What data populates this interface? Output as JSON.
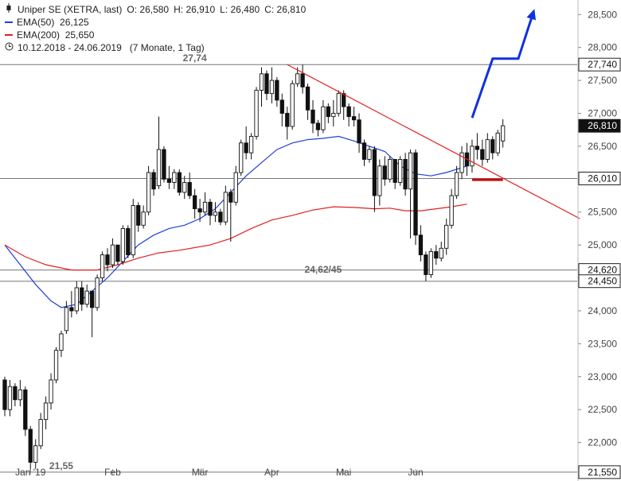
{
  "legend": {
    "instrument": "Uniper SE (XETRA, last)",
    "o_label": "O:",
    "o_value": "26,580",
    "h_label": "H:",
    "h_value": "26,910",
    "l_label": "L:",
    "l_value": "26,480",
    "c_label": "C:",
    "c_value": "26,810",
    "ema50_label": "EMA(50)",
    "ema50_value": "26,125",
    "ema50_color": "#1f3fd8",
    "ema200_label": "EMA(200)",
    "ema200_value": "25,650",
    "ema200_color": "#e02020",
    "period": "10.12.2018 - 24.06.2019",
    "period_note": "(7 Monate, 1 Tag)"
  },
  "chart_data": {
    "type": "candlestick",
    "ylim": [
      21.5,
      28.6
    ],
    "y_ticks": [
      "22,000",
      "22,500",
      "23,000",
      "23,500",
      "24,000",
      "24,500",
      "25,000",
      "25,500",
      "26,000",
      "26,500",
      "27,000",
      "27,500",
      "28,000",
      "28,500"
    ],
    "x_labels": [
      {
        "label": "Jan '19",
        "index": 5
      },
      {
        "label": "Feb",
        "index": 21
      },
      {
        "label": "Mär",
        "index": 38
      },
      {
        "label": "Apr",
        "index": 52
      },
      {
        "label": "Mai",
        "index": 66
      },
      {
        "label": "Jun",
        "index": 80
      }
    ],
    "price_boxes": [
      {
        "value": 27.74,
        "label": "27,740",
        "style": "outline"
      },
      {
        "value": 26.81,
        "label": "26,810",
        "style": "filled"
      },
      {
        "value": 26.01,
        "label": "26,010",
        "style": "outline"
      },
      {
        "value": 24.62,
        "label": "24,620",
        "style": "outline"
      },
      {
        "value": 24.45,
        "label": "24,450",
        "style": "outline"
      },
      {
        "value": 21.55,
        "label": "21,550",
        "style": "outline"
      }
    ],
    "horizontal_lines": [
      27.74,
      26.01,
      24.62,
      24.45
    ],
    "annotations": [
      {
        "text": "27,74",
        "index": 37,
        "y": 27.74
      },
      {
        "text": "24,62/45",
        "index": 62,
        "y": 24.53
      },
      {
        "text": "21,55",
        "index": 11,
        "y": 21.55
      }
    ],
    "trendline": {
      "from": {
        "index": 55,
        "y": 27.74
      },
      "to": {
        "index": 112,
        "y": 25.4
      },
      "color": "#e02020"
    },
    "forecast_arrow": {
      "color": "#1030e0",
      "points": [
        {
          "index": 91,
          "y": 26.93
        },
        {
          "index": 95,
          "y": 27.83
        },
        {
          "index": 100,
          "y": 27.83
        },
        {
          "index": 103,
          "y": 28.55
        }
      ]
    },
    "support_marker": {
      "from_index": 91,
      "to_index": 97,
      "y": 25.99,
      "color": "#d00000"
    },
    "series": [
      {
        "name": "EMA(50)",
        "color": "#1f3fd8",
        "points": [
          [
            0,
            25.0
          ],
          [
            3,
            24.7
          ],
          [
            6,
            24.4
          ],
          [
            9,
            24.15
          ],
          [
            11,
            24.05
          ],
          [
            14,
            24.1
          ],
          [
            17,
            24.3
          ],
          [
            20,
            24.5
          ],
          [
            23,
            24.75
          ],
          [
            26,
            25.0
          ],
          [
            29,
            25.15
          ],
          [
            32,
            25.25
          ],
          [
            35,
            25.3
          ],
          [
            38,
            25.4
          ],
          [
            41,
            25.55
          ],
          [
            44,
            25.8
          ],
          [
            47,
            26.05
          ],
          [
            50,
            26.25
          ],
          [
            53,
            26.45
          ],
          [
            56,
            26.55
          ],
          [
            59,
            26.6
          ],
          [
            62,
            26.62
          ],
          [
            65,
            26.65
          ],
          [
            68,
            26.58
          ],
          [
            71,
            26.5
          ],
          [
            74,
            26.42
          ],
          [
            77,
            26.2
          ],
          [
            80,
            26.08
          ],
          [
            83,
            26.05
          ],
          [
            86,
            26.1
          ],
          [
            90,
            26.2
          ]
        ]
      },
      {
        "name": "EMA(200)",
        "color": "#e02020",
        "points": [
          [
            0,
            25.0
          ],
          [
            4,
            24.82
          ],
          [
            8,
            24.7
          ],
          [
            13,
            24.62
          ],
          [
            18,
            24.62
          ],
          [
            22,
            24.7
          ],
          [
            26,
            24.8
          ],
          [
            30,
            24.88
          ],
          [
            34,
            24.92
          ],
          [
            40,
            25.0
          ],
          [
            44,
            25.1
          ],
          [
            48,
            25.25
          ],
          [
            52,
            25.38
          ],
          [
            56,
            25.45
          ],
          [
            60,
            25.53
          ],
          [
            64,
            25.58
          ],
          [
            68,
            25.57
          ],
          [
            72,
            25.55
          ],
          [
            75,
            25.56
          ],
          [
            78,
            25.52
          ],
          [
            81,
            25.52
          ],
          [
            84,
            25.55
          ],
          [
            87,
            25.58
          ],
          [
            90,
            25.62
          ]
        ]
      }
    ],
    "candles": [
      [
        22.95,
        23.0,
        22.4,
        22.5
      ],
      [
        22.5,
        22.95,
        22.4,
        22.85
      ],
      [
        22.85,
        22.9,
        22.55,
        22.65
      ],
      [
        22.65,
        22.95,
        22.55,
        22.8
      ],
      [
        22.8,
        22.85,
        22.1,
        22.2
      ],
      [
        22.2,
        22.25,
        21.55,
        21.7
      ],
      [
        21.7,
        22.05,
        21.6,
        21.95
      ],
      [
        21.95,
        22.45,
        21.9,
        22.35
      ],
      [
        22.35,
        22.7,
        22.2,
        22.6
      ],
      [
        22.6,
        23.05,
        22.5,
        22.95
      ],
      [
        22.95,
        23.45,
        22.9,
        23.4
      ],
      [
        23.4,
        23.7,
        23.3,
        23.65
      ],
      [
        23.7,
        24.15,
        23.65,
        24.05
      ],
      [
        24.05,
        24.3,
        23.9,
        24.0
      ],
      [
        24.0,
        24.45,
        23.95,
        24.35
      ],
      [
        24.35,
        24.45,
        24.0,
        24.1
      ],
      [
        24.1,
        24.4,
        24.05,
        24.3
      ],
      [
        24.3,
        24.3,
        23.6,
        24.05
      ],
      [
        24.05,
        24.55,
        24.0,
        24.5
      ],
      [
        24.5,
        24.9,
        24.45,
        24.85
      ],
      [
        24.85,
        24.95,
        24.6,
        24.7
      ],
      [
        24.7,
        25.1,
        24.65,
        25.0
      ],
      [
        25.0,
        25.0,
        24.7,
        24.75
      ],
      [
        24.75,
        25.3,
        24.7,
        25.25
      ],
      [
        25.25,
        25.3,
        24.8,
        24.85
      ],
      [
        24.85,
        25.7,
        24.8,
        25.6
      ],
      [
        25.6,
        25.65,
        25.2,
        25.3
      ],
      [
        25.3,
        25.6,
        25.25,
        25.5
      ],
      [
        25.5,
        26.2,
        25.45,
        26.1
      ],
      [
        26.1,
        26.15,
        25.75,
        25.85
      ],
      [
        25.9,
        26.95,
        25.85,
        26.45
      ],
      [
        26.45,
        26.5,
        25.95,
        26.0
      ],
      [
        26.0,
        26.2,
        25.85,
        25.95
      ],
      [
        25.95,
        26.15,
        25.85,
        26.1
      ],
      [
        26.1,
        26.15,
        25.75,
        25.8
      ],
      [
        25.8,
        26.05,
        25.7,
        25.95
      ],
      [
        25.95,
        26.1,
        25.7,
        25.75
      ],
      [
        25.75,
        25.85,
        25.4,
        25.55
      ],
      [
        25.55,
        25.7,
        25.35,
        25.5
      ],
      [
        25.5,
        25.8,
        25.45,
        25.65
      ],
      [
        25.65,
        25.7,
        25.3,
        25.45
      ],
      [
        25.45,
        25.65,
        25.35,
        25.5
      ],
      [
        25.5,
        25.55,
        25.3,
        25.35
      ],
      [
        25.35,
        25.9,
        25.3,
        25.8
      ],
      [
        25.8,
        25.85,
        25.05,
        25.65
      ],
      [
        25.65,
        26.2,
        25.6,
        26.1
      ],
      [
        26.1,
        26.6,
        26.05,
        26.55
      ],
      [
        26.55,
        26.8,
        26.3,
        26.4
      ],
      [
        26.4,
        26.7,
        26.3,
        26.65
      ],
      [
        26.65,
        27.4,
        26.6,
        27.35
      ],
      [
        27.35,
        27.7,
        27.1,
        27.6
      ],
      [
        27.6,
        27.65,
        27.2,
        27.3
      ],
      [
        27.3,
        27.7,
        27.15,
        27.5
      ],
      [
        27.5,
        27.55,
        27.1,
        27.2
      ],
      [
        27.2,
        27.3,
        26.8,
        27.0
      ],
      [
        27.0,
        27.1,
        26.6,
        26.8
      ],
      [
        26.8,
        27.5,
        26.75,
        27.45
      ],
      [
        27.45,
        27.7,
        27.4,
        27.6
      ],
      [
        27.6,
        27.74,
        27.3,
        27.4
      ],
      [
        27.4,
        27.45,
        26.9,
        27.05
      ],
      [
        27.05,
        27.2,
        26.7,
        26.85
      ],
      [
        26.85,
        26.9,
        26.65,
        26.75
      ],
      [
        26.75,
        27.2,
        26.7,
        27.1
      ],
      [
        27.1,
        27.15,
        26.85,
        26.95
      ],
      [
        26.95,
        27.2,
        26.8,
        27.0
      ],
      [
        27.0,
        27.35,
        26.95,
        27.3
      ],
      [
        27.3,
        27.35,
        26.9,
        27.1
      ],
      [
        27.1,
        27.15,
        26.8,
        26.95
      ],
      [
        26.95,
        27.1,
        26.8,
        26.9
      ],
      [
        26.9,
        27.0,
        26.4,
        26.55
      ],
      [
        26.55,
        26.6,
        26.2,
        26.3
      ],
      [
        26.3,
        26.5,
        26.25,
        26.45
      ],
      [
        26.45,
        26.5,
        25.5,
        25.75
      ],
      [
        25.75,
        26.3,
        25.6,
        26.2
      ],
      [
        26.2,
        26.35,
        25.9,
        26.0
      ],
      [
        26.0,
        26.35,
        25.95,
        26.3
      ],
      [
        26.3,
        26.3,
        25.85,
        25.95
      ],
      [
        25.95,
        26.35,
        25.9,
        26.3
      ],
      [
        26.3,
        26.4,
        25.75,
        25.85
      ],
      [
        25.85,
        26.45,
        25.1,
        26.4
      ],
      [
        26.4,
        26.45,
        25.0,
        25.15
      ],
      [
        25.15,
        25.3,
        24.75,
        24.85
      ],
      [
        24.85,
        24.9,
        24.45,
        24.55
      ],
      [
        24.55,
        24.95,
        24.5,
        24.9
      ],
      [
        24.9,
        25.0,
        24.7,
        24.8
      ],
      [
        24.8,
        25.05,
        24.75,
        24.95
      ],
      [
        24.95,
        25.4,
        24.85,
        25.3
      ],
      [
        25.3,
        25.85,
        25.25,
        25.75
      ],
      [
        25.75,
        26.2,
        25.7,
        26.1
      ],
      [
        26.1,
        26.5,
        26.0,
        26.4
      ],
      [
        26.4,
        26.55,
        26.05,
        26.2
      ],
      [
        26.2,
        26.6,
        26.1,
        26.5
      ],
      [
        26.5,
        26.7,
        26.3,
        26.45
      ],
      [
        26.45,
        26.6,
        26.2,
        26.3
      ],
      [
        26.3,
        26.7,
        26.25,
        26.6
      ],
      [
        26.6,
        26.65,
        26.3,
        26.4
      ],
      [
        26.4,
        26.75,
        26.35,
        26.7
      ],
      [
        26.58,
        26.91,
        26.48,
        26.81
      ]
    ]
  }
}
